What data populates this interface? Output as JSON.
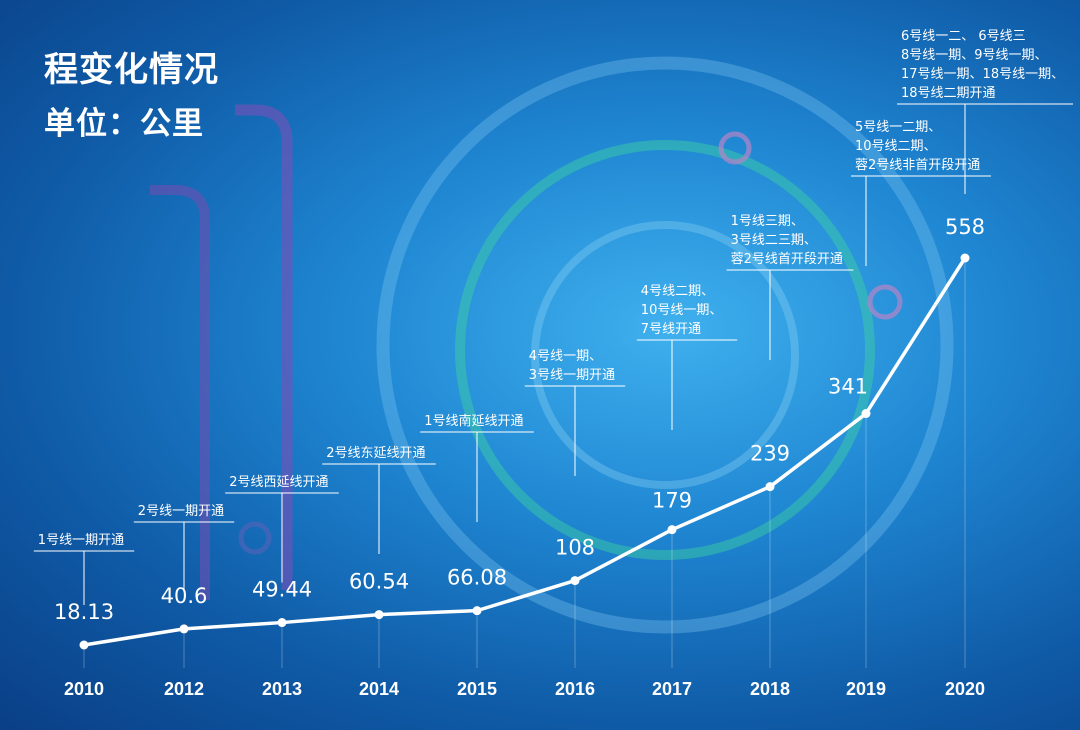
{
  "header": {
    "title": "程变化情况",
    "unit": "单位：公里"
  },
  "colors": {
    "background": "#1f86d2",
    "line": "#ffffff",
    "value_label": "#ffffff",
    "annotation": "#ffffff"
  },
  "chart_data": {
    "type": "line",
    "title": "程变化情况",
    "subtitle": "单位：公里",
    "x": [
      "2010",
      "2012",
      "2013",
      "2014",
      "2015",
      "2016",
      "2017",
      "2018",
      "2019",
      "2020"
    ],
    "values": [
      18.13,
      40.6,
      49.44,
      60.54,
      66.08,
      108,
      179,
      239,
      341,
      558
    ],
    "value_labels": [
      "18.13",
      "40.6",
      "49.44",
      "60.54",
      "66.08",
      "108",
      "179",
      "239",
      "341",
      "558"
    ],
    "ylim": [
      0,
      600
    ],
    "grid": false,
    "legend": "none",
    "annotations": [
      [
        "1号线一期开通"
      ],
      [
        "2号线一期开通"
      ],
      [
        "2号线西延线开通"
      ],
      [
        "2号线东延线开通"
      ],
      [
        "1号线南延线开通"
      ],
      [
        "4号线一期、",
        "3号线一期开通"
      ],
      [
        "4号线二期、",
        "10号线一期、",
        "7号线开通"
      ],
      [
        "1号线三期、",
        "3号线二三期、",
        "蓉2号线首开段开通"
      ],
      [
        "5号线一二期、",
        "10号线二期、",
        "蓉2号线非首开段开通"
      ],
      [
        "6号线一二、 6号线三",
        "8号线一期、9号线一期、",
        "17号线一期、18号线一期、",
        "18号线二期开通"
      ]
    ]
  }
}
